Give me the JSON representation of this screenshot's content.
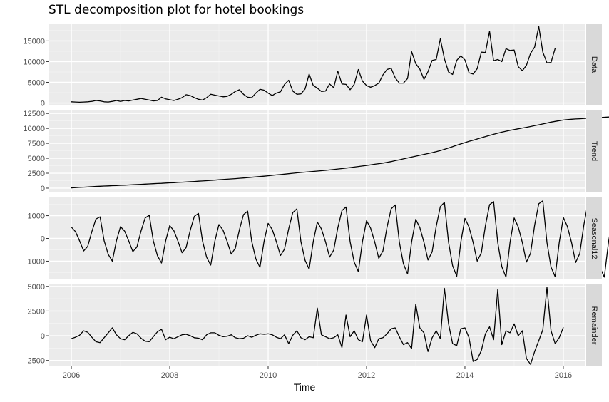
{
  "chart_data": {
    "type": "line",
    "title": "STL decomposition plot for hotel bookings",
    "xlabel": "Time",
    "x_start": 2006.0,
    "x_step": 0.0833333,
    "xlim": [
      2005.55,
      2016.45
    ],
    "xticks": [
      2006,
      2008,
      2010,
      2012,
      2014,
      2016
    ],
    "grid": true,
    "panels": [
      {
        "name": "Data",
        "ylim": [
          -600,
          19200
        ],
        "yticks": [
          0,
          5000,
          10000,
          15000
        ],
        "values": [
          300,
          250,
          200,
          250,
          300,
          400,
          600,
          500,
          300,
          250,
          400,
          600,
          400,
          600,
          500,
          700,
          900,
          1100,
          900,
          700,
          500,
          600,
          1400,
          1000,
          800,
          600,
          900,
          1300,
          2000,
          1800,
          1300,
          900,
          700,
          1300,
          2100,
          1900,
          1700,
          1500,
          1600,
          2100,
          2800,
          3200,
          2100,
          1400,
          1300,
          2400,
          3300,
          3100,
          2400,
          1800,
          2400,
          2700,
          4500,
          5500,
          2900,
          2100,
          2200,
          3400,
          7000,
          4200,
          3600,
          2800,
          2900,
          4600,
          3700,
          7700,
          4600,
          4500,
          3200,
          4500,
          8100,
          5300,
          4200,
          3800,
          4200,
          4800,
          6800,
          8100,
          8400,
          6100,
          4800,
          4800,
          5900,
          12400,
          9500,
          8200,
          5700,
          7600,
          10300,
          10500,
          15500,
          10700,
          7500,
          6900,
          10300,
          11400,
          10400,
          7300,
          7000,
          8300,
          12300,
          12200,
          17300,
          10200,
          10500,
          10000,
          13100,
          12700,
          12800,
          8800,
          7800,
          9100,
          12000,
          13500,
          18500,
          12300,
          9700,
          9800,
          13200
        ]
      },
      {
        "name": "Trend",
        "ylim": [
          -600,
          13000
        ],
        "yticks": [
          0,
          2500,
          5000,
          7500,
          10000,
          12500
        ],
        "values": [
          50,
          90,
          130,
          165,
          205,
          250,
          290,
          320,
          350,
          380,
          410,
          440,
          470,
          500,
          530,
          570,
          610,
          640,
          680,
          710,
          750,
          780,
          810,
          850,
          890,
          920,
          960,
          1000,
          1040,
          1080,
          1120,
          1160,
          1200,
          1250,
          1300,
          1350,
          1400,
          1450,
          1500,
          1550,
          1600,
          1650,
          1700,
          1760,
          1820,
          1880,
          1940,
          2000,
          2070,
          2140,
          2210,
          2280,
          2350,
          2420,
          2490,
          2560,
          2620,
          2680,
          2740,
          2800,
          2860,
          2920,
          2980,
          3050,
          3120,
          3200,
          3280,
          3360,
          3440,
          3530,
          3620,
          3710,
          3800,
          3900,
          4000,
          4100,
          4200,
          4320,
          4450,
          4600,
          4750,
          4900,
          5050,
          5200,
          5350,
          5500,
          5650,
          5800,
          5950,
          6100,
          6300,
          6500,
          6720,
          6950,
          7180,
          7400,
          7620,
          7830,
          8030,
          8230,
          8430,
          8630,
          8830,
          9020,
          9200,
          9370,
          9530,
          9670,
          9800,
          9930,
          10060,
          10190,
          10320,
          10460,
          10600,
          10750,
          10900,
          11050,
          11180,
          11300,
          11400,
          11470,
          11530,
          11580,
          11620,
          11660,
          11700,
          11740,
          11780,
          11820,
          11870,
          11900,
          11930,
          11950,
          11970,
          11990,
          12010,
          12030,
          12050,
          12080,
          12100
        ]
      },
      {
        "name": "Seasonal12",
        "ylim": [
          -1800,
          1800
        ],
        "yticks": [
          -1000,
          0,
          1000
        ],
        "values": [
          500,
          300,
          -100,
          -550,
          -350,
          300,
          850,
          950,
          -100,
          -700,
          -1000,
          -100,
          520,
          320,
          -110,
          -580,
          -380,
          330,
          900,
          1020,
          -110,
          -760,
          -1080,
          -110,
          560,
          340,
          -120,
          -630,
          -400,
          360,
          970,
          1100,
          -120,
          -830,
          -1170,
          -120,
          610,
          360,
          -130,
          -690,
          -430,
          390,
          1050,
          1200,
          -130,
          -900,
          -1270,
          -130,
          660,
          390,
          -140,
          -750,
          -470,
          420,
          1130,
          1300,
          -140,
          -960,
          -1350,
          -140,
          720,
          420,
          -150,
          -820,
          -510,
          460,
          1220,
          1380,
          -150,
          -1040,
          -1460,
          -150,
          780,
          450,
          -160,
          -880,
          -550,
          490,
          1300,
          1470,
          -160,
          -1110,
          -1560,
          -160,
          840,
          480,
          -170,
          -950,
          -590,
          530,
          1400,
          1580,
          -170,
          -1200,
          -1660,
          -170,
          880,
          500,
          -180,
          -1000,
          -630,
          560,
          1480,
          1620,
          -180,
          -1240,
          -1700,
          -180,
          900,
          510,
          -180,
          -1040,
          -650,
          580,
          1520,
          1650,
          -180,
          -1260,
          -1680,
          -180,
          920,
          520,
          -180,
          -1060,
          -660,
          590,
          1540,
          1660,
          -190,
          -1300,
          -1700,
          -190,
          940,
          530,
          -190,
          -1080,
          -680,
          600,
          1560,
          1680,
          -190,
          -1320,
          -1720,
          300
        ]
      },
      {
        "name": "Remainder",
        "ylim": [
          -3100,
          5200
        ],
        "yticks": [
          -2500,
          0,
          2500,
          5000
        ],
        "values": [
          -300,
          -150,
          50,
          500,
          350,
          -150,
          -600,
          -700,
          -200,
          300,
          800,
          100,
          -300,
          -400,
          0,
          350,
          200,
          -250,
          -550,
          -600,
          -100,
          400,
          650,
          -400,
          -150,
          -300,
          -100,
          100,
          150,
          0,
          -200,
          -250,
          -400,
          100,
          300,
          300,
          50,
          -100,
          -50,
          100,
          -200,
          -300,
          -250,
          0,
          -150,
          50,
          200,
          150,
          200,
          100,
          -150,
          -300,
          100,
          -800,
          50,
          500,
          -200,
          -400,
          -100,
          -200,
          2800,
          100,
          -100,
          -300,
          -200,
          100,
          -1200,
          2100,
          -100,
          500,
          -400,
          -600,
          2100,
          -500,
          -1200,
          -300,
          -200,
          200,
          700,
          800,
          -100,
          -900,
          -700,
          -1300,
          3200,
          800,
          300,
          -1600,
          -200,
          500,
          -300,
          4800,
          1200,
          -800,
          -1000,
          700,
          800,
          -200,
          -2600,
          -2400,
          -1500,
          200,
          900,
          -400,
          4700,
          -900,
          500,
          300,
          1200,
          0,
          500,
          -2300,
          -2900,
          -1600,
          -500,
          600,
          4900,
          500,
          -800,
          -200,
          850
        ]
      }
    ]
  }
}
